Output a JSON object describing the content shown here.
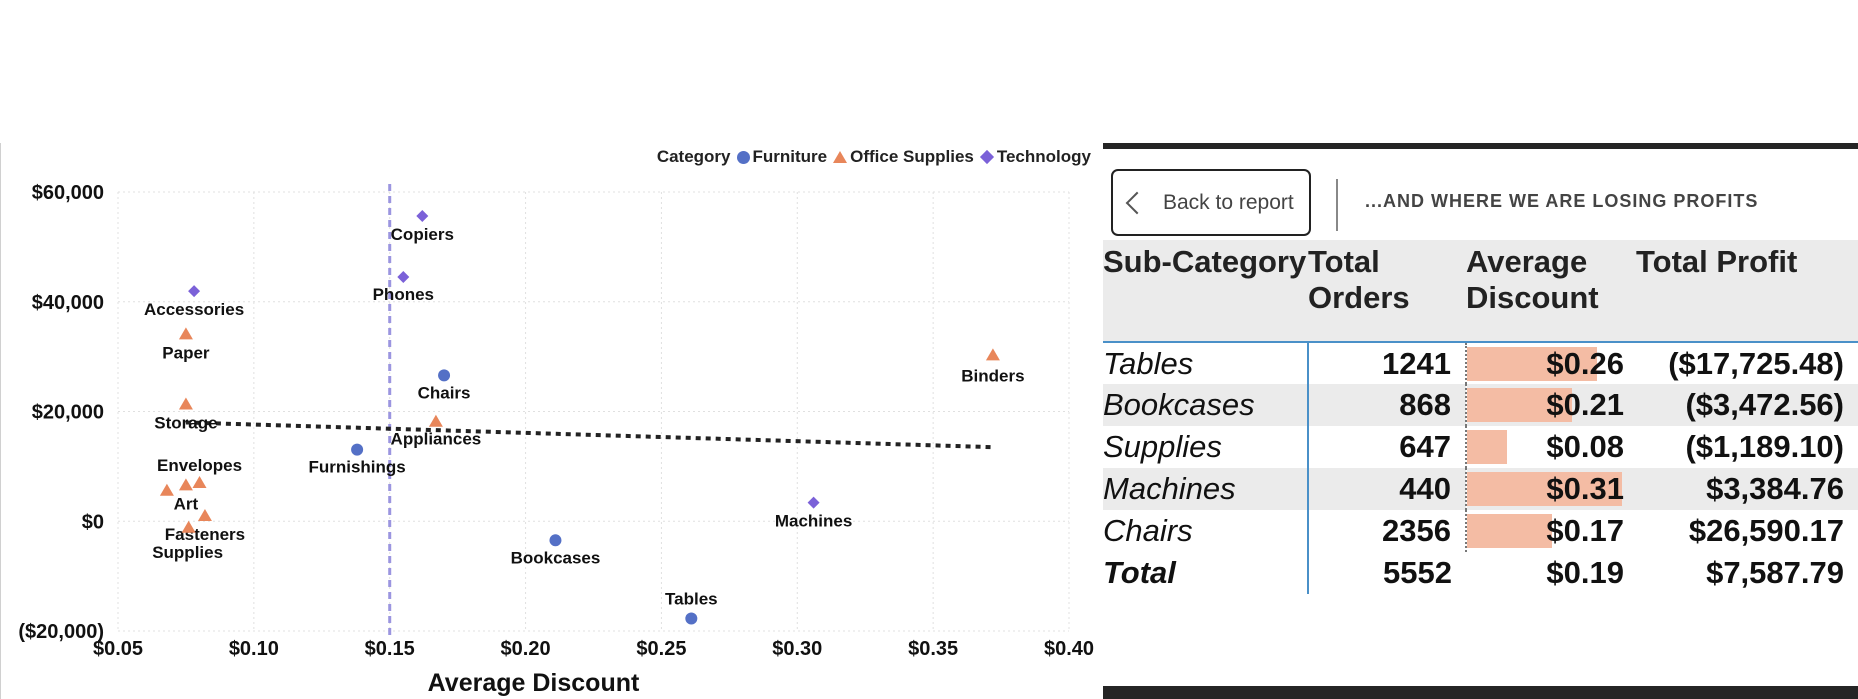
{
  "chart_data": {
    "type": "scatter",
    "xlabel": "Average Discount",
    "ylabel": "",
    "xlim": [
      0.05,
      0.4
    ],
    "ylim": [
      -20000,
      60000
    ],
    "x_ticks": [
      "$0.05",
      "$0.10",
      "$0.15",
      "$0.20",
      "$0.25",
      "$0.30",
      "$0.35",
      "$0.40"
    ],
    "x_tick_values": [
      0.05,
      0.1,
      0.15,
      0.2,
      0.25,
      0.3,
      0.35,
      0.4
    ],
    "y_ticks": [
      "$60,000",
      "$40,000",
      "$20,000",
      "$0",
      "($20,000)"
    ],
    "y_tick_values": [
      60000,
      40000,
      20000,
      0,
      -20000
    ],
    "grid": true,
    "legend_title": "Category",
    "legend_position": "top-right",
    "reference_line_x": 0.15,
    "trend_line": {
      "x": [
        0.075,
        0.372
      ],
      "y": [
        18000,
        13500
      ]
    },
    "series": [
      {
        "name": "Furniture",
        "marker": "circle",
        "color": "#5470c6",
        "points": [
          {
            "label": "Chairs",
            "x": 0.17,
            "y": 26590
          },
          {
            "label": "Furnishings",
            "x": 0.138,
            "y": 13059
          },
          {
            "label": "Bookcases",
            "x": 0.211,
            "y": -3473
          },
          {
            "label": "Tables",
            "x": 0.261,
            "y": -17725
          }
        ]
      },
      {
        "name": "Office Supplies",
        "marker": "triangle",
        "color": "#e8865a",
        "points": [
          {
            "label": "Paper",
            "x": 0.075,
            "y": 34054
          },
          {
            "label": "Binders",
            "x": 0.372,
            "y": 30222
          },
          {
            "label": "Storage",
            "x": 0.075,
            "y": 21279
          },
          {
            "label": "Appliances",
            "x": 0.167,
            "y": 18138
          },
          {
            "label": "Envelopes",
            "x": 0.08,
            "y": 6964
          },
          {
            "label": "Art",
            "x": 0.075,
            "y": 6528
          },
          {
            "label": "",
            "x": 0.068,
            "y": 5547
          },
          {
            "label": "Fasteners",
            "x": 0.082,
            "y": 950
          },
          {
            "label": "Supplies",
            "x": 0.076,
            "y": -1189
          }
        ]
      },
      {
        "name": "Technology",
        "marker": "diamond",
        "color": "#7b61d8",
        "points": [
          {
            "label": "Copiers",
            "x": 0.162,
            "y": 55618
          },
          {
            "label": "Phones",
            "x": 0.155,
            "y": 44516
          },
          {
            "label": "Accessories",
            "x": 0.078,
            "y": 41937
          },
          {
            "label": "Machines",
            "x": 0.306,
            "y": 3385
          }
        ]
      }
    ]
  },
  "report": {
    "back_label": "Back to report",
    "subtitle": "...AND WHERE WE ARE LOSING PROFITS",
    "columns": [
      "Sub-Category",
      "Total Orders",
      "Average Discount",
      "Total Profit"
    ],
    "rows": [
      {
        "sub": "Tables",
        "orders": "1241",
        "discount": "$0.26",
        "discount_value": 0.26,
        "profit": "($17,725.48)"
      },
      {
        "sub": "Bookcases",
        "orders": "868",
        "discount": "$0.21",
        "discount_value": 0.21,
        "profit": "($3,472.56)"
      },
      {
        "sub": "Supplies",
        "orders": "647",
        "discount": "$0.08",
        "discount_value": 0.08,
        "profit": "($1,189.10)"
      },
      {
        "sub": "Machines",
        "orders": "440",
        "discount": "$0.31",
        "discount_value": 0.31,
        "profit": "$3,384.76"
      },
      {
        "sub": "Chairs",
        "orders": "2356",
        "discount": "$0.17",
        "discount_value": 0.17,
        "profit": "$26,590.17"
      }
    ],
    "total": {
      "label": "Total",
      "orders": "5552",
      "discount": "$0.19",
      "profit": "$7,587.79"
    },
    "colors": {
      "discount_bar": "#f4bca4",
      "row_shade": "#ebebeb",
      "border_accent": "#4a90c8"
    }
  }
}
